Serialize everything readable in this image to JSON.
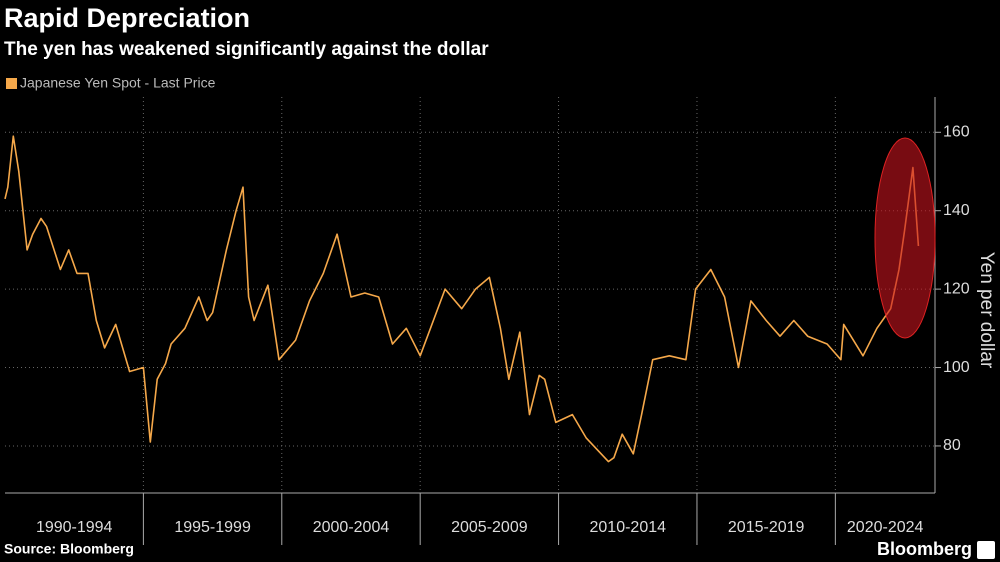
{
  "chart_data": {
    "type": "line",
    "title": "Rapid Depreciation",
    "subtitle": "The yen has weakened significantly against the dollar",
    "y_axis_label": "Yen per dollar",
    "source": "Source: Bloomberg",
    "branding": "Bloomberg",
    "x": [
      1990.0,
      1990.1,
      1990.3,
      1990.5,
      1990.8,
      1991.0,
      1991.3,
      1991.5,
      1992.0,
      1992.3,
      1992.6,
      1993.0,
      1993.3,
      1993.6,
      1994.0,
      1994.5,
      1995.0,
      1995.25,
      1995.5,
      1995.8,
      1996.0,
      1996.5,
      1997.0,
      1997.3,
      1997.5,
      1998.0,
      1998.35,
      1998.6,
      1998.8,
      1999.0,
      1999.5,
      1999.9,
      2000.5,
      2001.0,
      2001.5,
      2002.0,
      2002.5,
      2003.0,
      2003.5,
      2004.0,
      2004.5,
      2005.0,
      2005.9,
      2006.5,
      2007.0,
      2007.5,
      2007.9,
      2008.2,
      2008.6,
      2008.95,
      2009.3,
      2009.5,
      2009.9,
      2010.5,
      2011.0,
      2011.8,
      2012.0,
      2012.3,
      2012.7,
      2013.0,
      2013.4,
      2014.0,
      2014.6,
      2014.95,
      2015.5,
      2016.0,
      2016.5,
      2016.95,
      2017.5,
      2018.0,
      2018.5,
      2019.0,
      2019.7,
      2020.2,
      2020.3,
      2021.0,
      2021.5,
      2022.0,
      2022.3,
      2022.5,
      2022.8,
      2023.0
    ],
    "series": [
      {
        "name": "Japanese Yen Spot - Last Price",
        "color": "#f5a84a",
        "values": [
          143,
          146,
          159,
          150,
          130,
          134,
          138,
          136,
          125,
          130,
          124,
          124,
          112,
          105,
          111,
          99,
          100,
          81,
          97,
          101,
          106,
          110,
          118,
          112,
          114,
          130,
          140,
          146,
          118,
          112,
          121,
          102,
          107,
          117,
          124,
          134,
          118,
          119,
          118,
          106,
          110,
          103,
          120,
          115,
          120,
          123,
          110,
          97,
          109,
          88,
          98,
          97,
          86,
          88,
          82,
          76,
          77,
          83,
          78,
          88,
          102,
          103,
          102,
          120,
          125,
          118,
          100,
          117,
          112,
          108,
          112,
          108,
          106,
          102,
          111,
          103,
          110,
          115,
          125,
          135,
          151,
          131
        ]
      }
    ],
    "xlim": [
      1990,
      2023.6
    ],
    "periods": [
      {
        "label": "1990-1994",
        "start": 1990,
        "end": 1995
      },
      {
        "label": "1995-1999",
        "start": 1995,
        "end": 2000
      },
      {
        "label": "2000-2004",
        "start": 2000,
        "end": 2005
      },
      {
        "label": "2005-2009",
        "start": 2005,
        "end": 2010
      },
      {
        "label": "2010-2014",
        "start": 2010,
        "end": 2015
      },
      {
        "label": "2015-2019",
        "start": 2015,
        "end": 2020
      },
      {
        "label": "2020-2024",
        "start": 2020,
        "end": 2025
      }
    ],
    "xticks": [
      1995,
      2000,
      2005,
      2010,
      2015,
      2020
    ],
    "ylim": [
      68,
      169
    ],
    "yticks": [
      80,
      100,
      120,
      140,
      160
    ],
    "grid": true
  }
}
